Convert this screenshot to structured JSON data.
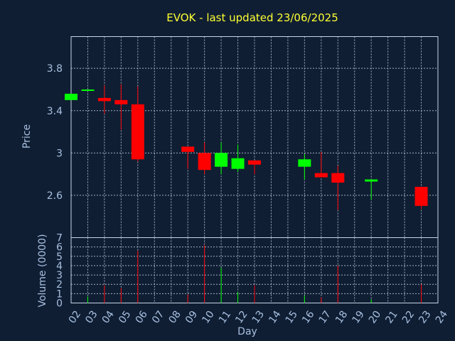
{
  "chart_data": {
    "type": "candlestick",
    "title": "EVOK - last updated 23/06/2025",
    "xlabel": "Day",
    "ylabel": "Price",
    "volume_ylabel": "Volume (0000)",
    "ylim": [
      2.2,
      4.1
    ],
    "yticks": [
      "2.6",
      "3",
      "3.4",
      "3.8"
    ],
    "volume_ylim": [
      0,
      7
    ],
    "volume_yticks": [
      "0",
      "1",
      "2",
      "3",
      "4",
      "5",
      "6",
      "7"
    ],
    "x_labels": [
      "02",
      "03",
      "04",
      "05",
      "06",
      "07",
      "08",
      "09",
      "10",
      "11",
      "12",
      "13",
      "14",
      "15",
      "16",
      "17",
      "18",
      "19",
      "20",
      "21",
      "22",
      "23",
      "24"
    ],
    "grid": true,
    "colors": {
      "up": "#00ff00",
      "down": "#ff0000",
      "title": "#ffff33",
      "axis_text": "#a8c0e0",
      "background": "#0f1e33"
    },
    "candles": [
      {
        "day": "02",
        "open": 3.5,
        "close": 3.56,
        "high": 3.56,
        "low": 3.5,
        "volume": 0.0
      },
      {
        "day": "03",
        "open": 3.59,
        "close": 3.6,
        "high": 3.6,
        "low": 3.59,
        "volume": 0.7
      },
      {
        "day": "04",
        "open": 3.52,
        "close": 3.49,
        "high": 3.64,
        "low": 3.37,
        "volume": 1.9
      },
      {
        "day": "05",
        "open": 3.5,
        "close": 3.46,
        "high": 3.65,
        "low": 3.22,
        "volume": 1.6
      },
      {
        "day": "06",
        "open": 3.46,
        "close": 2.94,
        "high": 3.63,
        "low": 2.92,
        "volume": 5.6
      },
      {
        "day": "09",
        "open": 3.06,
        "close": 3.01,
        "high": 3.06,
        "low": 2.85,
        "volume": 0.9
      },
      {
        "day": "10",
        "open": 3.0,
        "close": 2.84,
        "high": 3.1,
        "low": 2.8,
        "volume": 6.2
      },
      {
        "day": "11",
        "open": 2.87,
        "close": 3.0,
        "high": 3.1,
        "low": 2.8,
        "volume": 3.8
      },
      {
        "day": "12",
        "open": 2.85,
        "close": 2.95,
        "high": 3.08,
        "low": 2.82,
        "volume": 1.2
      },
      {
        "day": "13",
        "open": 2.93,
        "close": 2.89,
        "high": 2.93,
        "low": 2.8,
        "volume": 1.9
      },
      {
        "day": "16",
        "open": 2.87,
        "close": 2.94,
        "high": 2.99,
        "low": 2.75,
        "volume": 0.8
      },
      {
        "day": "17",
        "open": 2.81,
        "close": 2.77,
        "high": 3.01,
        "low": 2.77,
        "volume": 0.6
      },
      {
        "day": "18",
        "open": 2.81,
        "close": 2.72,
        "high": 2.88,
        "low": 2.46,
        "volume": 4.0
      },
      {
        "day": "20",
        "open": 2.73,
        "close": 2.75,
        "high": 2.75,
        "low": 2.56,
        "volume": 0.4
      },
      {
        "day": "23",
        "open": 2.68,
        "close": 2.5,
        "high": 2.68,
        "low": 2.47,
        "volume": 2.0
      }
    ]
  }
}
